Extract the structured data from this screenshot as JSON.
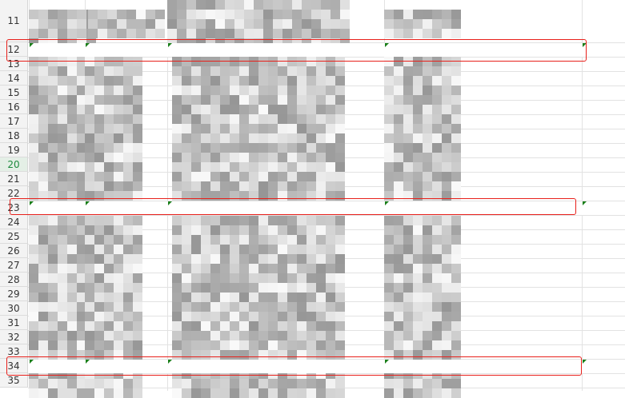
{
  "sheet": {
    "row_labels": [
      "11",
      "12",
      "13",
      "14",
      "15",
      "16",
      "17",
      "18",
      "19",
      "20",
      "21",
      "22",
      "23",
      "24",
      "25",
      "26",
      "27",
      "28",
      "29",
      "30",
      "31",
      "32",
      "33",
      "34",
      "35"
    ],
    "selected_row": "20",
    "highlighted_rows": [
      "12",
      "23",
      "34"
    ],
    "cell_content": "pixelated / redacted",
    "colors": {
      "highlight_border": "#e8201b",
      "comment_marker": "#1a7f1a",
      "selected_row_label": "#1e8a3e"
    }
  }
}
